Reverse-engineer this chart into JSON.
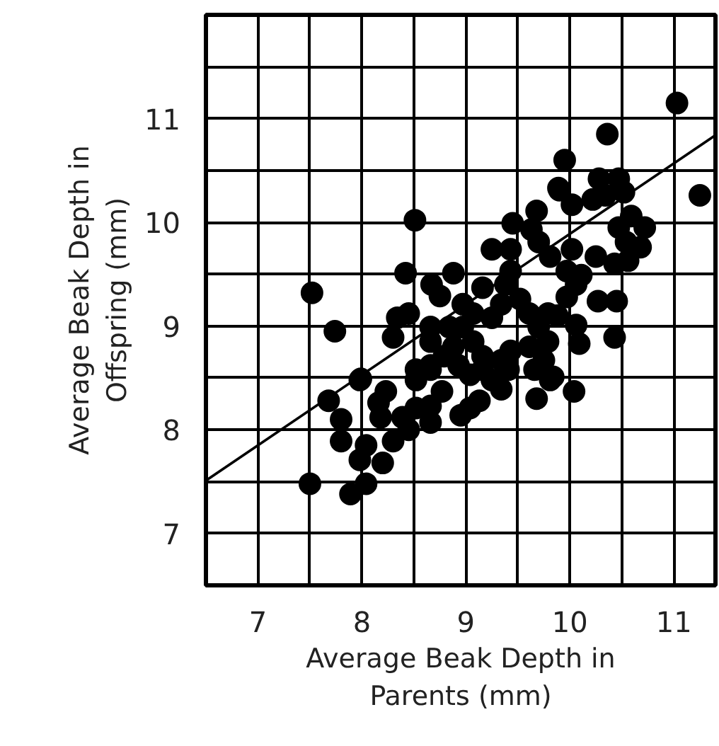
{
  "chart_data": {
    "type": "scatter",
    "xlabel": "Average Beak Depth in Parents (mm)",
    "ylabel": "Average Beak Depth in Offspring (mm)",
    "xlim": [
      6.5,
      11.4
    ],
    "ylim": [
      6.5,
      12
    ],
    "xticks": [
      7,
      {
        "value": 7.5,
        "label": null
      },
      8,
      {
        "value": 8.5,
        "label": null
      },
      9,
      {
        "value": 9.5,
        "label": null
      },
      10,
      {
        "value": 10.5,
        "label": null
      },
      11
    ],
    "yticks": [
      7,
      {
        "value": 7.5,
        "label": null
      },
      8,
      {
        "value": 8.5,
        "label": null
      },
      9,
      {
        "value": 9.5,
        "label": null
      },
      10,
      {
        "value": 10.5,
        "label": null
      },
      11,
      {
        "value": 11.5,
        "label": null
      }
    ],
    "grid": true,
    "marker": "circle",
    "series": [
      {
        "color": "#000000",
        "x": [
          11.03,
          10.36,
          9.95,
          11.25,
          9.89,
          10.28,
          10.47,
          8.51,
          7.52,
          7.74,
          7.99,
          8.42,
          8.67,
          8.88,
          8.75,
          8.34,
          8.45,
          8.3,
          8.66,
          8.66,
          8.52,
          8.66,
          9.16,
          9.25,
          9.43,
          9.45,
          9.68,
          9.63,
          9.9,
          10.02,
          10.22,
          10.34,
          10.52,
          10.59,
          10.72,
          10.47,
          10.54,
          10.68,
          10.43,
          10.56,
          10.25,
          10.02,
          9.7,
          9.81,
          9.97,
          10.11,
          10.06,
          9.97,
          10.27,
          10.45,
          10.43,
          10.06,
          10.09,
          9.88,
          9.79,
          9.7,
          9.61,
          9.52,
          9.43,
          9.38,
          9.34,
          9.25,
          9.61,
          9.79,
          9.75,
          9.43,
          9.34,
          9.16,
          9.07,
          8.97,
          8.97,
          9.07,
          8.84,
          8.88,
          8.79,
          8.93,
          9.16,
          9.84,
          7.98,
          7.68,
          7.8,
          7.8,
          7.5,
          7.89,
          8.04,
          7.98,
          8.04,
          8.2,
          8.3,
          8.16,
          8.23,
          8.18,
          8.39,
          8.45,
          8.52,
          8.66,
          8.66,
          8.77,
          8.52,
          8.66,
          8.95,
          9.04,
          9.13,
          9.04,
          9.25,
          9.34,
          9.41,
          9.66,
          9.68,
          9.81,
          10.04
        ],
        "values": [
          11.15,
          10.85,
          10.6,
          10.26,
          10.33,
          10.42,
          10.42,
          10.02,
          9.32,
          8.95,
          8.49,
          9.51,
          9.4,
          9.51,
          9.29,
          9.08,
          9.12,
          8.89,
          8.99,
          8.85,
          8.58,
          8.62,
          9.37,
          9.74,
          9.74,
          9.99,
          10.11,
          9.93,
          10.31,
          10.17,
          10.22,
          10.26,
          10.29,
          10.06,
          9.95,
          9.95,
          9.81,
          9.76,
          9.6,
          9.63,
          9.67,
          9.74,
          9.81,
          9.67,
          9.53,
          9.49,
          9.4,
          9.28,
          9.24,
          9.24,
          8.89,
          9.01,
          8.83,
          9.1,
          9.12,
          8.99,
          9.12,
          9.26,
          9.53,
          9.4,
          9.21,
          9.08,
          8.8,
          8.85,
          8.67,
          8.76,
          8.67,
          8.71,
          8.85,
          8.99,
          9.21,
          9.12,
          8.99,
          8.8,
          8.71,
          8.62,
          8.58,
          8.51,
          8.48,
          8.28,
          8.1,
          7.89,
          7.48,
          7.38,
          7.48,
          7.71,
          7.85,
          7.68,
          7.89,
          8.26,
          8.37,
          8.12,
          8.12,
          8.0,
          8.21,
          8.23,
          8.07,
          8.37,
          8.48,
          8.58,
          8.14,
          8.21,
          8.28,
          8.53,
          8.48,
          8.39,
          8.58,
          8.58,
          8.3,
          8.48,
          8.37
        ]
      },
      {
        "type": "line",
        "color": "#000000",
        "marker": "none",
        "x": [
          6.5,
          11.4
        ],
        "values": [
          7.51,
          10.84
        ]
      }
    ]
  }
}
